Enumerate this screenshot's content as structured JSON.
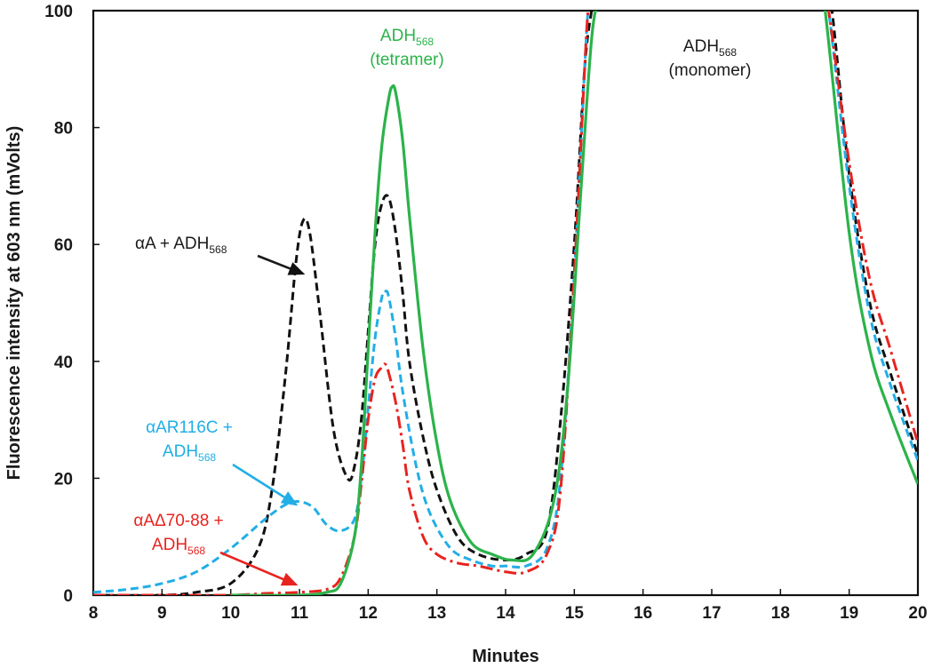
{
  "chart_data": {
    "type": "line",
    "xlabel": "Minutes",
    "ylabel": "Fluorescence intensity at 603 nm (mVolts)",
    "xlim": [
      8,
      20
    ],
    "ylim": [
      0,
      100
    ],
    "xticks": [
      "8",
      "9",
      "10",
      "11",
      "12",
      "13",
      "14",
      "15",
      "16",
      "17",
      "18",
      "19",
      "20"
    ],
    "yticks": [
      "0",
      "20",
      "40",
      "60",
      "80",
      "100"
    ],
    "grid": false,
    "series": [
      {
        "key": "aA",
        "color": "#111111",
        "style": "dashed",
        "x": [
          8.0,
          9.0,
          9.5,
          10.0,
          10.4,
          10.6,
          10.8,
          10.95,
          11.05,
          11.15,
          11.3,
          11.5,
          11.7,
          11.8,
          11.9,
          12.0,
          12.1,
          12.2,
          12.3,
          12.4,
          12.5,
          12.6,
          12.8,
          13.0,
          13.3,
          13.6,
          14.0,
          14.3,
          14.6,
          14.8,
          15.0,
          15.15,
          15.25,
          15.3,
          18.65,
          18.75,
          19.0,
          19.3,
          19.6,
          20.0
        ],
        "y": [
          0,
          0,
          0.5,
          2,
          8,
          18,
          38,
          57,
          64,
          62,
          48,
          28,
          20,
          22,
          30,
          45,
          60,
          67,
          68,
          62,
          52,
          40,
          27,
          18,
          10,
          7,
          6,
          7,
          11,
          30,
          60,
          90,
          100,
          104,
          104,
          100,
          72,
          50,
          38,
          24
        ]
      },
      {
        "key": "aAR116C",
        "color": "#22aee6",
        "style": "dashed",
        "x": [
          8.0,
          8.5,
          9.0,
          9.5,
          10.0,
          10.5,
          10.8,
          11.0,
          11.2,
          11.4,
          11.6,
          11.8,
          11.9,
          12.0,
          12.1,
          12.2,
          12.25,
          12.3,
          12.4,
          12.5,
          12.7,
          12.9,
          13.2,
          13.5,
          13.8,
          14.0,
          14.3,
          14.6,
          14.8,
          15.0,
          15.15,
          15.2,
          15.25,
          18.6,
          18.7,
          19.0,
          19.3,
          19.6,
          20.0
        ],
        "y": [
          0.5,
          1,
          2,
          4,
          8,
          13,
          15.5,
          16,
          15,
          12,
          11,
          13,
          20,
          32,
          44,
          51,
          52,
          51,
          44,
          35,
          22,
          14,
          8,
          6,
          5,
          5,
          5,
          8,
          20,
          55,
          90,
          100,
          104,
          104,
          100,
          70,
          48,
          36,
          23
        ]
      },
      {
        "key": "aAdelta",
        "color": "#e8231f",
        "style": "dashdot",
        "x": [
          8.0,
          9.0,
          10.0,
          10.5,
          11.0,
          11.4,
          11.6,
          11.8,
          11.9,
          12.0,
          12.1,
          12.2,
          12.25,
          12.3,
          12.4,
          12.5,
          12.6,
          12.8,
          13.0,
          13.3,
          13.6,
          14.0,
          14.3,
          14.6,
          14.8,
          15.0,
          15.15,
          15.2,
          15.25,
          18.6,
          18.7,
          19.0,
          19.3,
          19.6,
          20.0
        ],
        "y": [
          0,
          0,
          0,
          0.3,
          0.5,
          1,
          3,
          10,
          19,
          30,
          37,
          39,
          39.5,
          38,
          33,
          26,
          18,
          10,
          7,
          5.5,
          5,
          4,
          4,
          7,
          18,
          55,
          90,
          100,
          104,
          104,
          100,
          74,
          54,
          42,
          26
        ]
      },
      {
        "key": "adh",
        "color": "#2bb34b",
        "style": "solid",
        "x": [
          10.0,
          11.0,
          11.4,
          11.6,
          11.8,
          11.9,
          12.0,
          12.1,
          12.2,
          12.3,
          12.35,
          12.4,
          12.5,
          12.6,
          12.8,
          13.0,
          13.2,
          13.5,
          13.8,
          14.1,
          14.4,
          14.7,
          14.9,
          15.1,
          15.25,
          15.35,
          15.4,
          18.55,
          18.65,
          19.0,
          19.3,
          19.6,
          20.0
        ],
        "y": [
          0,
          0,
          0.5,
          2,
          10,
          22,
          42,
          62,
          77,
          85,
          87,
          86,
          78,
          65,
          42,
          26,
          16,
          9,
          7,
          6,
          7,
          16,
          35,
          70,
          95,
          102,
          104,
          104,
          100,
          62,
          42,
          31,
          19
        ]
      }
    ],
    "annotations": [
      {
        "key": "tetramer",
        "line1": "ADH",
        "sub1": "568",
        "line2": "(tetramer)",
        "color": "#2bb34b"
      },
      {
        "key": "monomer",
        "line1": "ADH",
        "sub1": "568",
        "line2": "(monomer)",
        "color": "#1a1a1a"
      },
      {
        "key": "aA",
        "line1": "αA + ADH",
        "sub1": "568",
        "color": "#1a1a1a",
        "arrow_to": [
          11.05,
          55
        ]
      },
      {
        "key": "aAR116C",
        "line1": "αAR116C +",
        "line2": "ADH",
        "sub2": "568",
        "color": "#22aee6",
        "arrow_to": [
          10.95,
          15.5
        ]
      },
      {
        "key": "aAdelta",
        "line1": "αAΔ70-88 +",
        "line2": "ADH",
        "sub2": "568",
        "color": "#e8231f",
        "arrow_to": [
          10.95,
          1.8
        ]
      }
    ]
  }
}
